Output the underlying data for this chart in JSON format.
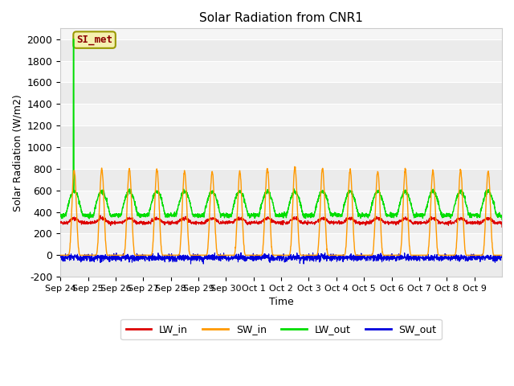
{
  "title": "Solar Radiation from CNR1",
  "xlabel": "Time",
  "ylabel": "Solar Radiation (W/m2)",
  "ylim": [
    -200,
    2100
  ],
  "yticks": [
    -200,
    0,
    200,
    400,
    600,
    800,
    1000,
    1200,
    1400,
    1600,
    1800,
    2000
  ],
  "x_labels": [
    "Sep 24",
    "Sep 25",
    "Sep 26",
    "Sep 27",
    "Sep 28",
    "Sep 29",
    "Sep 30",
    "Oct 1",
    "Oct 2",
    "Oct 3",
    "Oct 4",
    "Oct 5",
    "Oct 6",
    "Oct 7",
    "Oct 8",
    "Oct 9"
  ],
  "colors": {
    "LW_in": "#dd0000",
    "SW_in": "#ff9900",
    "LW_out": "#00dd00",
    "SW_out": "#0000dd"
  },
  "annotation_text": "SI_met",
  "bg_color": "#ebebeb",
  "bg_color2": "#f5f5f5",
  "legend": [
    "LW_in",
    "SW_in",
    "LW_out",
    "SW_out"
  ]
}
